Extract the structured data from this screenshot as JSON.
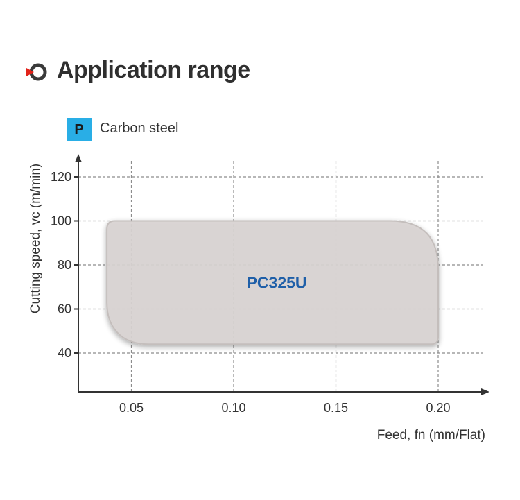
{
  "header": {
    "title": "Application range",
    "icon": "target-ring-icon"
  },
  "material": {
    "badge": "P",
    "label": "Carbon steel",
    "badge_color": "#29aee6"
  },
  "chart_data": {
    "type": "area",
    "title": "",
    "xlabel": "Feed, fn (mm/Flat)",
    "ylabel": "Cutting speed, vc (m/min)",
    "x_ticks": [
      "0.05",
      "0.10",
      "0.15",
      "0.20"
    ],
    "x_tick_values": [
      0.05,
      0.1,
      0.15,
      0.2
    ],
    "y_ticks": [
      "40",
      "60",
      "80",
      "100",
      "120"
    ],
    "y_tick_values": [
      40,
      60,
      80,
      100,
      120
    ],
    "xlim": [
      0.025,
      0.225
    ],
    "ylim": [
      22,
      128
    ],
    "grid": true,
    "regions": [
      {
        "label": "PC325U",
        "feed_min": 0.038,
        "feed_max": 0.2,
        "speed_min": 44,
        "speed_max": 100,
        "fill_color": "#d9d4d2",
        "label_color": "#1f5fa8"
      }
    ]
  }
}
